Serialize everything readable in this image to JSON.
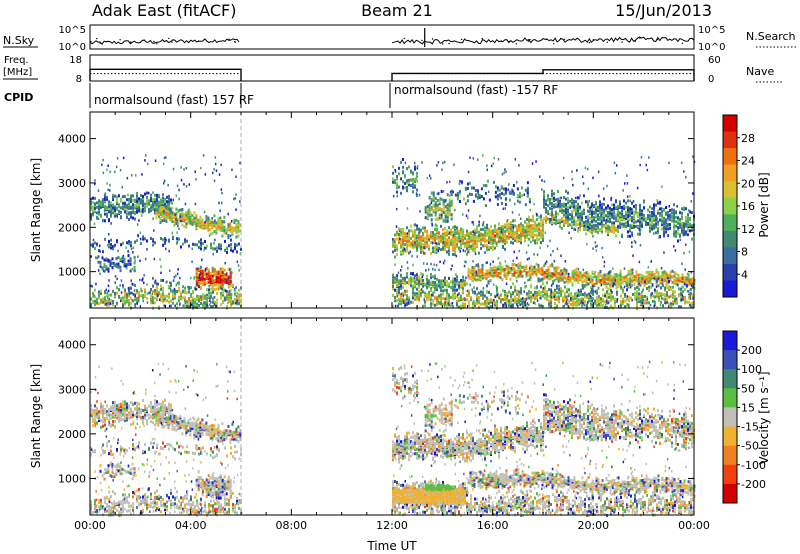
{
  "header": {
    "station": "Adak East (fitACF)",
    "beam": "Beam 21",
    "date": "15/Jun/2013"
  },
  "summary": {
    "nsky_label": "N.Sky",
    "nsearch_label": "N.Search",
    "freq_label_1": "Freq.",
    "freq_label_2": "[MHz]",
    "nave_label": "Nave",
    "cpid_label": "CPID",
    "nsky_ticks": [
      "10^5",
      "10^0"
    ],
    "nsearch_ticks": [
      "10^5",
      "10^0"
    ],
    "freq_ticks": [
      "18",
      "8"
    ],
    "nave_ticks": [
      "60",
      "0"
    ],
    "cpid_segments": [
      {
        "text": "normalsound (fast) 157 RF",
        "start_hr": 0,
        "end_hr": 6
      },
      {
        "text": "normalsound (fast) -157 RF",
        "start_hr": 12,
        "end_hr": 24
      }
    ],
    "freq_mhz": [
      {
        "start_hr": 0,
        "end_hr": 6,
        "value": 12.5
      },
      {
        "start_hr": 12,
        "end_hr": 18,
        "value": 10.9
      },
      {
        "start_hr": 18,
        "end_hr": 24,
        "value": 12.3
      }
    ],
    "nave": [
      {
        "start_hr": 0,
        "end_hr": 6,
        "value": 17
      },
      {
        "start_hr": 12,
        "end_hr": 24,
        "value": 17
      }
    ]
  },
  "chart_data": [
    {
      "type": "heatmap",
      "name": "power",
      "ylabel": "Slant Range [km]",
      "xlabel": "",
      "xlim_hr": [
        0,
        24
      ],
      "ylim_km": [
        180,
        4600
      ],
      "yticks": [
        1000,
        2000,
        3000,
        4000
      ],
      "colorbar_label": "Power [dB]",
      "colorbar_ticks": [
        "4",
        "8",
        "12",
        "16",
        "20",
        "24",
        "28"
      ],
      "colorbar_colors": [
        "#1a1ad6",
        "#2a3fb0",
        "#3b6ea0",
        "#3f8a70",
        "#4fb05a",
        "#8fd04a",
        "#d8c030",
        "#f0a020",
        "#f07010",
        "#e03010",
        "#d40000"
      ],
      "data_gap_hr": [
        6,
        12
      ],
      "bands": [
        {
          "start_hr": 0,
          "end_hr": 6,
          "range_km": [
            2350,
            2800
          ],
          "intensity": "medium"
        },
        {
          "start_hr": 3,
          "end_hr": 6,
          "range_km": [
            1900,
            2300
          ],
          "intensity": "high"
        },
        {
          "start_hr": 4.2,
          "end_hr": 5.6,
          "range_km": [
            700,
            1200
          ],
          "intensity": "very high"
        },
        {
          "start_hr": 12,
          "end_hr": 18,
          "range_km": [
            1400,
            2300
          ],
          "intensity": "high"
        },
        {
          "start_hr": 18,
          "end_hr": 24,
          "range_km": [
            1900,
            2900
          ],
          "intensity": "medium"
        },
        {
          "start_hr": 12,
          "end_hr": 24,
          "range_km": [
            600,
            1200
          ],
          "intensity": "high"
        }
      ]
    },
    {
      "type": "heatmap",
      "name": "velocity",
      "ylabel": "Slant Range [km]",
      "xlabel": "Time UT",
      "xlim_hr": [
        0,
        24
      ],
      "ylim_km": [
        180,
        4600
      ],
      "yticks": [
        1000,
        2000,
        3000,
        4000
      ],
      "xticks": [
        "00:00",
        "04:00",
        "08:00",
        "12:00",
        "16:00",
        "20:00",
        "00:00"
      ],
      "colorbar_label": "Velocity [m s⁻¹]",
      "colorbar_ticks": [
        "200",
        "100",
        "50",
        "15",
        "-15",
        "-50",
        "-100",
        "-200"
      ],
      "colorbar_colors": [
        "#1a1ad6",
        "#3a4fb8",
        "#3f8a70",
        "#58c040",
        "#c0c0b8",
        "#f0b030",
        "#f08020",
        "#f04010",
        "#d40000"
      ],
      "data_gap_hr": [
        6,
        12
      ]
    }
  ]
}
